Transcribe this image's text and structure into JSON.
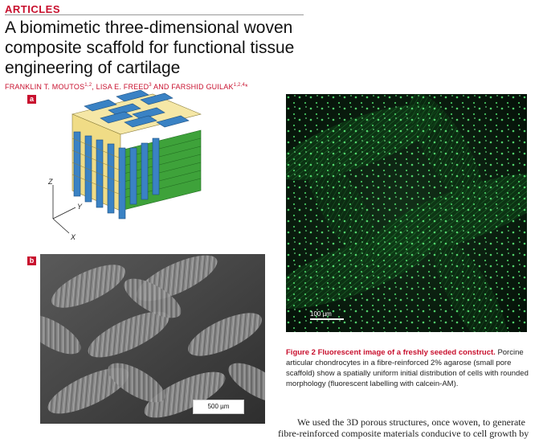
{
  "section": "ARTICLES",
  "title": "A biomimetic three-dimensional woven composite scaffold for functional tissue engineering of cartilage",
  "authors": "FRANKLIN T. MOUTOS1,2, LISA E. FREED3 AND FARSHID GUILAK1,2,4*",
  "figure1": {
    "panel_a_label": "a",
    "panel_b_label": "b",
    "axis_z": "Z",
    "axis_y": "Y",
    "axis_x": "X",
    "scalebar": "500 µm"
  },
  "figure2": {
    "scalebar": "100 µm",
    "caption_title": "Figure 2 Fluorescent image of a freshly seeded construct.",
    "caption_body": "Porcine articular chondrocytes in a fibre-reinforced 2% agarose (small pore scaffold) show a spatially uniform initial distribution of cells with rounded morphology (fluorescent labelling with calcein-AM)."
  },
  "body_text": "We used the 3D porous structures, once woven, to generate fibre-reinforced composite materials conducive to cell growth by",
  "colors": {
    "accent": "#c8102e",
    "fiber_blue": "#3a82c4",
    "fiber_yellow": "#f5e7a6",
    "fiber_green": "#3ea23a"
  }
}
